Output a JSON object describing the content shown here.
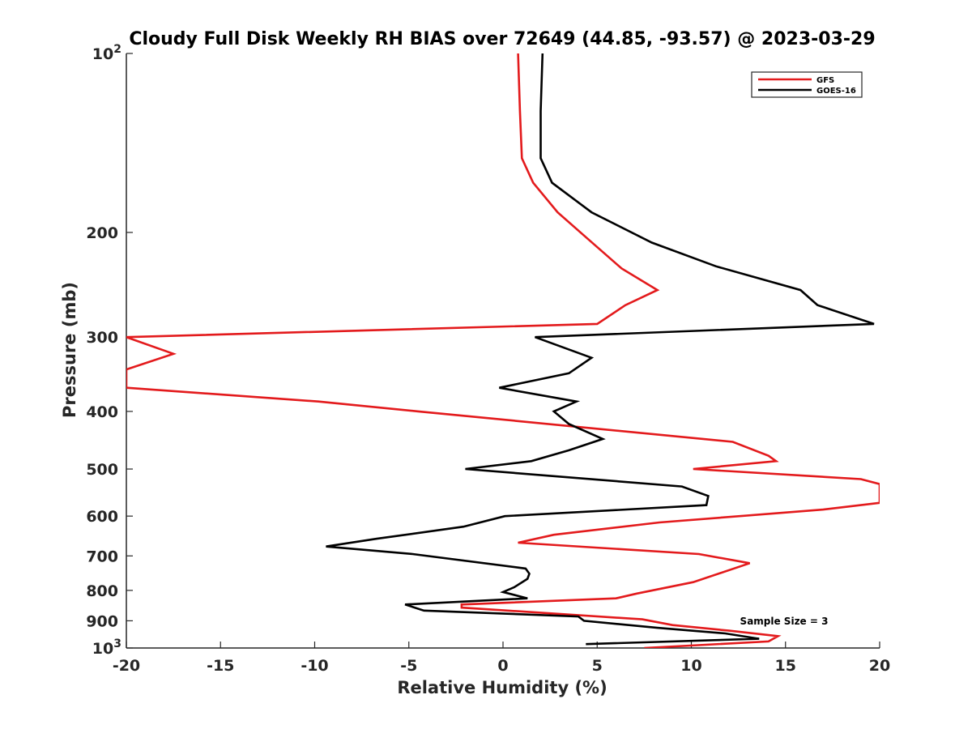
{
  "chart_data": {
    "type": "line",
    "title": "Cloudy Full Disk Weekly RH BIAS over 72649 (44.85, -93.57) @ 2023-03-29",
    "xlabel": "Relative Humidity (%)",
    "ylabel": "Pressure (mb)",
    "xlim": [
      -20,
      20
    ],
    "ylim": [
      100,
      1000
    ],
    "yscale": "log",
    "yreversed": true,
    "grid": false,
    "legend_position": "top-right",
    "xticks": [
      -20,
      -15,
      -10,
      -5,
      0,
      5,
      10,
      15,
      20
    ],
    "xtick_labels": [
      "-20",
      "-15",
      "-10",
      "-5",
      "0",
      "5",
      "10",
      "15",
      "20"
    ],
    "yticks": [
      {
        "value": 100,
        "label": "10",
        "sup": "2"
      },
      {
        "value": 200,
        "label": "200",
        "sup": ""
      },
      {
        "value": 300,
        "label": "300",
        "sup": ""
      },
      {
        "value": 400,
        "label": "400",
        "sup": ""
      },
      {
        "value": 500,
        "label": "500",
        "sup": ""
      },
      {
        "value": 600,
        "label": "600",
        "sup": ""
      },
      {
        "value": 700,
        "label": "700",
        "sup": ""
      },
      {
        "value": 800,
        "label": "800",
        "sup": ""
      },
      {
        "value": 900,
        "label": "900",
        "sup": ""
      },
      {
        "value": 1000,
        "label": "10",
        "sup": "3"
      }
    ],
    "series": [
      {
        "name": "GFS",
        "color": "#e31a1c",
        "points": [
          [
            0.8,
            100
          ],
          [
            0.9,
            125
          ],
          [
            1.0,
            150
          ],
          [
            1.6,
            165
          ],
          [
            2.9,
            185
          ],
          [
            4.5,
            205
          ],
          [
            6.3,
            230
          ],
          [
            8.2,
            250
          ],
          [
            6.5,
            265
          ],
          [
            5.0,
            285
          ],
          [
            -20,
            300
          ],
          [
            -17.5,
            320
          ],
          [
            -20,
            340
          ],
          [
            -20,
            365
          ],
          [
            -9.8,
            385
          ],
          [
            -4.5,
            400
          ],
          [
            12.2,
            450
          ],
          [
            14.1,
            475
          ],
          [
            14.5,
            485
          ],
          [
            10.1,
            500
          ],
          [
            19.0,
            520
          ],
          [
            20,
            530
          ],
          [
            20,
            570
          ],
          [
            17.0,
            585
          ],
          [
            8.3,
            615
          ],
          [
            2.7,
            645
          ],
          [
            0.8,
            665
          ],
          [
            10.4,
            695
          ],
          [
            13.1,
            720
          ],
          [
            10.1,
            775
          ],
          [
            7.1,
            810
          ],
          [
            6.0,
            825
          ],
          [
            -2.2,
            845
          ],
          [
            -2.2,
            855
          ],
          [
            7.4,
            895
          ],
          [
            9.0,
            915
          ],
          [
            12.0,
            935
          ],
          [
            14.6,
            955
          ],
          [
            14.1,
            975
          ],
          [
            7.5,
            1000
          ]
        ]
      },
      {
        "name": "GOES-16",
        "color": "#000000",
        "points": [
          [
            2.1,
            100
          ],
          [
            2.0,
            125
          ],
          [
            2.0,
            150
          ],
          [
            2.6,
            165
          ],
          [
            4.7,
            185
          ],
          [
            7.9,
            208
          ],
          [
            11.3,
            228
          ],
          [
            15.8,
            250
          ],
          [
            16.7,
            265
          ],
          [
            19.7,
            285
          ],
          [
            1.7,
            300
          ],
          [
            4.7,
            325
          ],
          [
            3.5,
            345
          ],
          [
            -0.2,
            365
          ],
          [
            3.9,
            385
          ],
          [
            2.7,
            400
          ],
          [
            3.5,
            420
          ],
          [
            5.3,
            445
          ],
          [
            3.5,
            465
          ],
          [
            1.5,
            485
          ],
          [
            -2.0,
            500
          ],
          [
            9.5,
            535
          ],
          [
            10.9,
            555
          ],
          [
            10.8,
            575
          ],
          [
            0.1,
            600
          ],
          [
            -2.1,
            625
          ],
          [
            -6.7,
            655
          ],
          [
            -9.4,
            675
          ],
          [
            -4.8,
            695
          ],
          [
            1.2,
            735
          ],
          [
            1.4,
            750
          ],
          [
            1.3,
            765
          ],
          [
            0.6,
            790
          ],
          [
            0.0,
            805
          ],
          [
            1.3,
            825
          ],
          [
            -5.2,
            845
          ],
          [
            -4.2,
            865
          ],
          [
            4.0,
            885
          ],
          [
            4.3,
            900
          ],
          [
            8.2,
            925
          ],
          [
            11.8,
            945
          ],
          [
            13.6,
            965
          ],
          [
            4.4,
            985
          ]
        ]
      }
    ],
    "annotation": "Sample Size = 3"
  }
}
